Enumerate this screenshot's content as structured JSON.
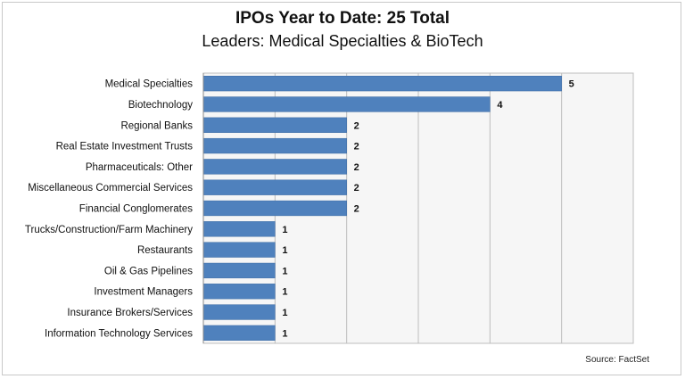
{
  "title": "IPOs Year to Date: 25 Total",
  "subtitle": "Leaders: Medical Specialties & BioTech",
  "source": "Source: FactSet",
  "colors": {
    "bar": "#4f81bd",
    "bar_stroke": "#3b6aa3",
    "grid": "#bdbdbd",
    "plot_bg": "#f6f6f6"
  },
  "chart_data": {
    "type": "bar",
    "orientation": "horizontal",
    "categories": [
      "Medical Specialties",
      "Biotechnology",
      "Regional Banks",
      "Real Estate Investment Trusts",
      "Pharmaceuticals: Other",
      "Miscellaneous Commercial Services",
      "Financial Conglomerates",
      "Trucks/Construction/Farm Machinery",
      "Restaurants",
      "Oil & Gas Pipelines",
      "Investment Managers",
      "Insurance Brokers/Services",
      "Information Technology Services"
    ],
    "values": [
      5,
      4,
      2,
      2,
      2,
      2,
      2,
      1,
      1,
      1,
      1,
      1,
      1
    ],
    "data_labels": true,
    "xlim": [
      0,
      6
    ],
    "grid": true,
    "legend": "none"
  }
}
